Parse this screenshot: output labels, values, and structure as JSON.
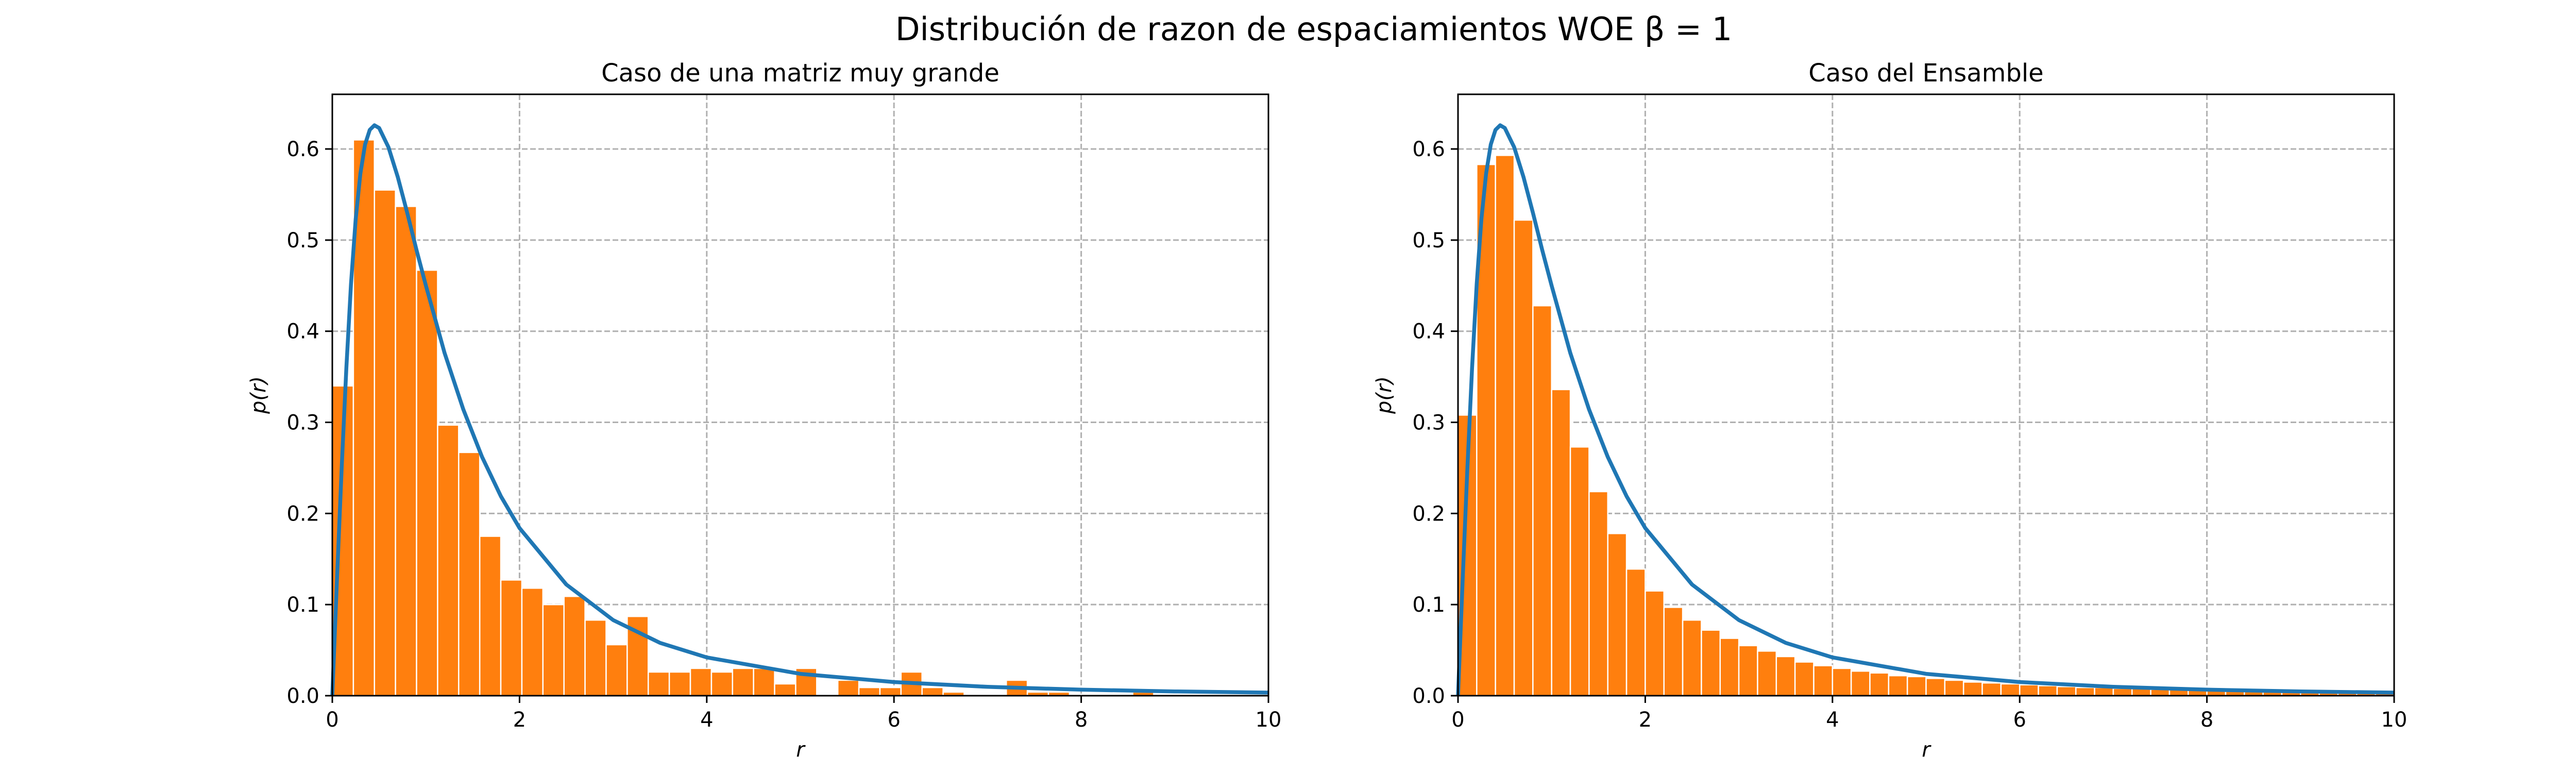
{
  "figure": {
    "suptitle": "Distribución de razon de espaciamientos WOE β = 1"
  },
  "colors": {
    "bar": "#ff7f0e",
    "bar_edge": "#ffffff",
    "curve": "#1f77b4",
    "grid": "#b0b0b0"
  },
  "chart_data": [
    {
      "type": "bar",
      "title": "Caso de una matriz muy grande",
      "xlabel": "r",
      "ylabel": "p(r)",
      "xlim": [
        0,
        10
      ],
      "ylim": [
        0,
        0.66
      ],
      "xticks": [
        0,
        2,
        4,
        6,
        8,
        10
      ],
      "yticks": [
        0.0,
        0.1,
        0.2,
        0.3,
        0.4,
        0.5,
        0.6
      ],
      "grid": true,
      "bin_width": 0.225,
      "bin_start": 0,
      "histogram": [
        0.34,
        0.61,
        0.555,
        0.537,
        0.467,
        0.297,
        0.267,
        0.175,
        0.127,
        0.118,
        0.1,
        0.109,
        0.083,
        0.056,
        0.087,
        0.026,
        0.026,
        0.03,
        0.026,
        0.03,
        0.03,
        0.013,
        0.03,
        0.0,
        0.017,
        0.009,
        0.009,
        0.026,
        0.009,
        0.004,
        0.0,
        0.0,
        0.017,
        0.004,
        0.004,
        0.0,
        0.0,
        0.0,
        0.004,
        0.0,
        0.0,
        0.0,
        0.0,
        0.0,
        0.0
      ],
      "curve": {
        "x": [
          0.0,
          0.05,
          0.1,
          0.15,
          0.2,
          0.25,
          0.3,
          0.35,
          0.4,
          0.45,
          0.5,
          0.6,
          0.7,
          0.8,
          0.9,
          1.0,
          1.2,
          1.4,
          1.6,
          1.8,
          2.0,
          2.5,
          3.0,
          3.5,
          4.0,
          5.0,
          6.0,
          7.0,
          8.0,
          9.0,
          10.0
        ],
        "y": [
          0.0,
          0.128,
          0.25,
          0.36,
          0.452,
          0.523,
          0.573,
          0.605,
          0.621,
          0.626,
          0.623,
          0.602,
          0.569,
          0.53,
          0.489,
          0.45,
          0.376,
          0.314,
          0.262,
          0.219,
          0.184,
          0.122,
          0.083,
          0.058,
          0.042,
          0.024,
          0.015,
          0.0097,
          0.0066,
          0.0047,
          0.0034
        ]
      }
    },
    {
      "type": "bar",
      "title": "Caso del Ensamble",
      "xlabel": "r",
      "ylabel": "p(r)",
      "xlim": [
        0,
        10
      ],
      "ylim": [
        0,
        0.66
      ],
      "xticks": [
        0,
        2,
        4,
        6,
        8,
        10
      ],
      "yticks": [
        0.0,
        0.1,
        0.2,
        0.3,
        0.4,
        0.5,
        0.6
      ],
      "grid": true,
      "bin_width": 0.2,
      "bin_start": 0,
      "histogram": [
        0.308,
        0.583,
        0.593,
        0.522,
        0.428,
        0.336,
        0.273,
        0.224,
        0.178,
        0.139,
        0.115,
        0.097,
        0.083,
        0.072,
        0.063,
        0.055,
        0.049,
        0.043,
        0.037,
        0.033,
        0.03,
        0.027,
        0.025,
        0.022,
        0.021,
        0.019,
        0.017,
        0.015,
        0.014,
        0.013,
        0.012,
        0.011,
        0.01,
        0.009,
        0.009,
        0.008,
        0.008,
        0.007,
        0.007,
        0.006,
        0.006,
        0.005,
        0.005,
        0.005,
        0.005,
        0.004,
        0.004,
        0.004,
        0.004,
        0.003
      ],
      "curve": {
        "x": [
          0.0,
          0.05,
          0.1,
          0.15,
          0.2,
          0.25,
          0.3,
          0.35,
          0.4,
          0.45,
          0.5,
          0.6,
          0.7,
          0.8,
          0.9,
          1.0,
          1.2,
          1.4,
          1.6,
          1.8,
          2.0,
          2.5,
          3.0,
          3.5,
          4.0,
          5.0,
          6.0,
          7.0,
          8.0,
          9.0,
          10.0
        ],
        "y": [
          0.0,
          0.128,
          0.25,
          0.36,
          0.452,
          0.523,
          0.573,
          0.605,
          0.621,
          0.626,
          0.623,
          0.602,
          0.569,
          0.53,
          0.489,
          0.45,
          0.376,
          0.314,
          0.262,
          0.219,
          0.184,
          0.122,
          0.083,
          0.058,
          0.042,
          0.024,
          0.015,
          0.0097,
          0.0066,
          0.0047,
          0.0034
        ]
      }
    }
  ]
}
